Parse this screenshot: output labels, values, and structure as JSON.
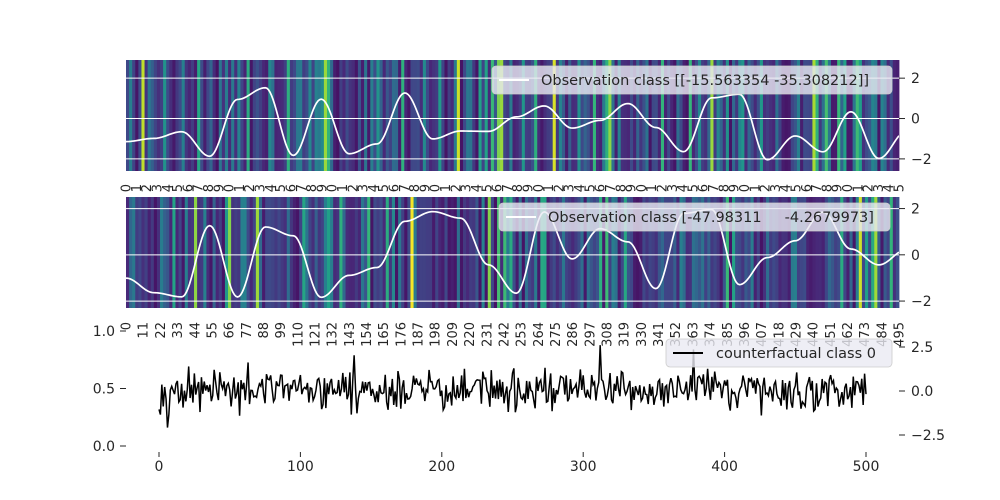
{
  "chart_data": [
    {
      "type": "line",
      "panel": "top",
      "background": "heatmap (viridis) of feature importance across time steps",
      "series": [
        {
          "name": "Observation class [[-15.563354 -35.308212]]",
          "color": "#ffffff"
        }
      ],
      "ylim": [
        -2.6,
        2.9
      ],
      "yticks": [
        2,
        0,
        -2
      ],
      "ytick_labels": [
        "2",
        "0",
        "−2"
      ],
      "grid": true,
      "legend_placement": "upper right",
      "xtick_labels": [
        "0",
        "1",
        "2",
        "3",
        "4",
        "5",
        "6",
        "7",
        "8",
        "9",
        "0",
        "1",
        "2",
        "3",
        "4",
        "5",
        "6",
        "7",
        "8",
        "9",
        "0",
        "1",
        "2",
        "3",
        "4",
        "5",
        "6",
        "7",
        "8",
        "9",
        "0",
        "1",
        "2",
        "3",
        "4",
        "5",
        "6",
        "7",
        "8",
        "9",
        "0",
        "1",
        "2",
        "3",
        "4",
        "5",
        "6",
        "7",
        "8",
        "9",
        "0",
        "1",
        "2",
        "3",
        "4",
        "5",
        "6",
        "7",
        "8",
        "9",
        "0",
        "1",
        "2",
        "3",
        "4",
        "5",
        "6",
        "7",
        "8",
        "9",
        "0",
        "1",
        "2",
        "3",
        "4",
        "5"
      ]
    },
    {
      "type": "line",
      "panel": "middle",
      "background": "heatmap (viridis) of feature importance across time steps",
      "series": [
        {
          "name": "Observation class [-47.98311     -4.2679973]",
          "color": "#ffffff"
        }
      ],
      "ylim": [
        -2.3,
        2.5
      ],
      "yticks": [
        2,
        0,
        -2
      ],
      "ytick_labels": [
        "2",
        "0",
        "−2"
      ],
      "grid": true,
      "legend_placement": "upper right",
      "xtick_labels": [
        "0",
        "11",
        "22",
        "33",
        "44",
        "55",
        "66",
        "77",
        "88",
        "99",
        "110",
        "121",
        "132",
        "143",
        "154",
        "165",
        "176",
        "187",
        "198",
        "209",
        "220",
        "231",
        "242",
        "253",
        "264",
        "275",
        "286",
        "297",
        "308",
        "319",
        "330",
        "341",
        "352",
        "363",
        "374",
        "385",
        "396",
        "407",
        "418",
        "429",
        "440",
        "451",
        "462",
        "473",
        "484",
        "495"
      ]
    },
    {
      "type": "line",
      "panel": "bottom",
      "series": [
        {
          "name": "counterfactual class 0",
          "color": "#000000"
        }
      ],
      "x_range": [
        0,
        500
      ],
      "xlim": [
        -25,
        525
      ],
      "xticks": [
        0,
        100,
        200,
        300,
        400,
        500
      ],
      "xtick_labels": [
        "0",
        "100",
        "200",
        "300",
        "400",
        "500"
      ],
      "left_yticks": [
        0.0,
        0.5,
        1.0
      ],
      "left_ytick_labels": [
        "0.0",
        "0.5",
        "1.0"
      ],
      "right_ylim": [
        -3.2,
        3.2
      ],
      "right_yticks": [
        2.5,
        0.0,
        -2.5
      ],
      "right_ytick_labels": [
        "2.5",
        "0.0",
        "−2.5"
      ],
      "grid": false,
      "legend_placement": "upper right"
    }
  ]
}
